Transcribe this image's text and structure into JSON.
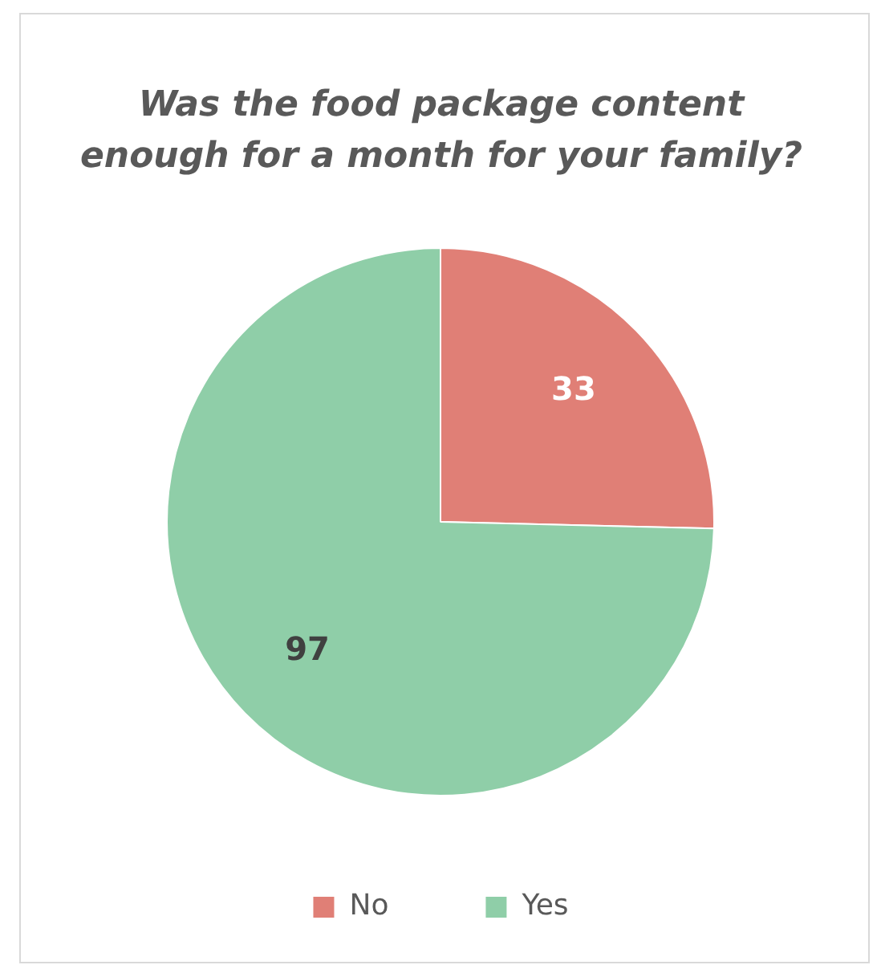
{
  "chart_data": {
    "type": "pie",
    "title": "Was the food package content enough for a month for your family?",
    "categories": [
      "No",
      "Yes"
    ],
    "values": [
      33,
      97
    ],
    "colors": [
      "#e07f76",
      "#8fcea8"
    ],
    "data_labels": true,
    "legend": "bottom"
  }
}
